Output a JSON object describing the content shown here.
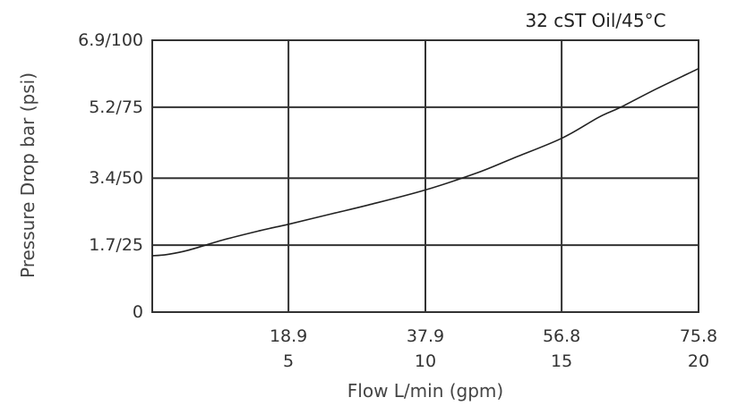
{
  "chart_data": {
    "type": "line",
    "title": "",
    "annotation": "32 cST Oil/45°C",
    "xlabel": "Flow L/min (gpm)",
    "ylabel": "Pressure Drop bar (psi)",
    "xlim": [
      0,
      75.8
    ],
    "ylim": [
      0,
      6.9
    ],
    "grid": true,
    "x_ticks": [
      {
        "value": 18.9,
        "label": "18.9",
        "sublabel": "5"
      },
      {
        "value": 37.9,
        "label": "37.9",
        "sublabel": "10"
      },
      {
        "value": 56.8,
        "label": "56.8",
        "sublabel": "15"
      },
      {
        "value": 75.8,
        "label": "75.8",
        "sublabel": "20"
      }
    ],
    "y_ticks": [
      {
        "value": 0,
        "label": "0"
      },
      {
        "value": 1.7,
        "label": "1.7/25"
      },
      {
        "value": 3.4,
        "label": "3.4/50"
      },
      {
        "value": 5.2,
        "label": "5.2/75"
      },
      {
        "value": 6.9,
        "label": "6.9/100"
      }
    ],
    "series": [
      {
        "x": [
          0,
          2,
          5,
          10,
          15,
          18.9,
          25,
          30,
          37.9,
          45,
          50,
          56.8,
          62,
          65,
          70,
          75.8
        ],
        "y": [
          1.43,
          1.46,
          1.57,
          1.84,
          2.07,
          2.23,
          2.5,
          2.72,
          3.1,
          3.53,
          3.9,
          4.41,
          4.95,
          5.2,
          5.67,
          6.18
        ]
      }
    ]
  },
  "colors": {
    "line": "#222222",
    "grid": "#333333",
    "axis": "#333333"
  }
}
